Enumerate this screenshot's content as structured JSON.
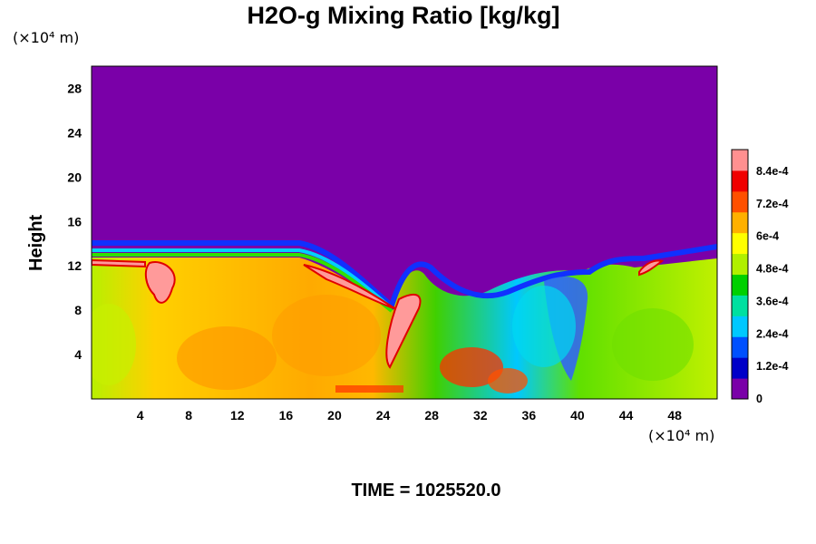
{
  "chart_data": {
    "type": "heatmap",
    "title": "H2O-g Mixing Ratio [kg/kg]",
    "ylabel": "Height",
    "x_unit_label": "(×10⁴ m)",
    "y_unit_label": "(×10⁴ m)",
    "xlim": [
      0,
      51.5
    ],
    "ylim": [
      0,
      30
    ],
    "x_ticks": [
      "4",
      "8",
      "12",
      "16",
      "20",
      "24",
      "28",
      "32",
      "36",
      "40",
      "44",
      "48"
    ],
    "y_ticks": [
      "4",
      "8",
      "12",
      "16",
      "20",
      "24",
      "28"
    ],
    "colorbar": {
      "range": [
        0,
        0.00092
      ],
      "tick_values": [
        0,
        0.00012,
        0.00024,
        0.00036,
        0.00048,
        0.0006,
        0.00072,
        0.00084
      ],
      "tick_labels": [
        "0",
        "1.2e-4",
        "2.4e-4",
        "3.6e-4",
        "4.8e-4",
        "6e-4",
        "7.2e-4",
        "8.4e-4"
      ],
      "colors": [
        "#7a00a8",
        "#0000c8",
        "#0050ff",
        "#00c8ff",
        "#00e0a0",
        "#00d000",
        "#b0f000",
        "#ffff00",
        "#ffb000",
        "#ff5000",
        "#f00000",
        "#ff9090"
      ]
    },
    "field_description": {
      "upper_dry_layer_value": 0,
      "boundary_height": 13.5,
      "lower_layer_typical_value": 0.00058
    }
  },
  "footer": {
    "time_label": "TIME = 1025520.0"
  }
}
